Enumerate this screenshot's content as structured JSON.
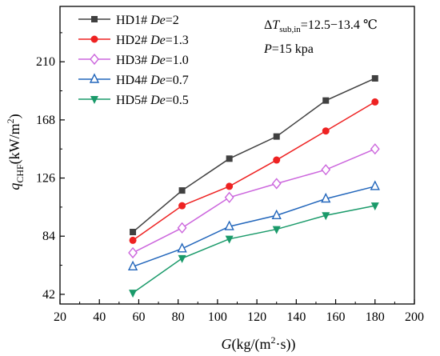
{
  "chart_data": {
    "type": "line",
    "xlabel": "G(kg/(m²·s))",
    "xlabel_parts": {
      "var": "G",
      "rest": "(kg/(m",
      "sup": "2",
      "rest2": "·s))"
    },
    "ylabel": "qCHF(kW/m²)",
    "ylabel_parts": {
      "var": "q",
      "sub": "CHF",
      "rest": "(kW/m",
      "sup": "2",
      "rest2": ")"
    },
    "xlim": [
      20,
      200
    ],
    "ylim": [
      35,
      250
    ],
    "x_ticks": [
      20,
      40,
      60,
      80,
      100,
      120,
      140,
      160,
      180,
      200
    ],
    "y_ticks": [
      42,
      84,
      126,
      168,
      210
    ],
    "grid": false,
    "legend_position": "top-left",
    "annotations": {
      "delta_t": {
        "prefix": "Δ",
        "var": "T",
        "sub": "sub,in",
        "value": "=12.5−13.4 ℃"
      },
      "pressure": {
        "var": "P",
        "value": "=15 kpa"
      }
    },
    "series": [
      {
        "name": "HD1#",
        "param": "De",
        "param_value": "=2",
        "color": "#404040",
        "marker": "square",
        "x": [
          57,
          82,
          106,
          130,
          155,
          180
        ],
        "y": [
          87,
          117,
          140,
          156,
          182,
          198
        ]
      },
      {
        "name": "HD2#",
        "param": "De",
        "param_value": "=1.3",
        "color": "#ee2222",
        "marker": "circle",
        "x": [
          57,
          82,
          106,
          130,
          155,
          180
        ],
        "y": [
          81,
          106,
          120,
          139,
          160,
          181
        ]
      },
      {
        "name": "HD3#",
        "param": "De",
        "param_value": "=1.0",
        "color": "#cc66dd",
        "marker": "diamond-open",
        "x": [
          57,
          82,
          106,
          130,
          155,
          180
        ],
        "y": [
          72,
          90,
          112,
          122,
          132,
          147
        ]
      },
      {
        "name": "HD4#",
        "param": "De",
        "param_value": "=0.7",
        "color": "#2266bb",
        "marker": "triangle-up-open",
        "x": [
          57,
          82,
          106,
          130,
          155,
          180
        ],
        "y": [
          62,
          75,
          91,
          99,
          111,
          120
        ]
      },
      {
        "name": "HD5#",
        "param": "De",
        "param_value": "=0.5",
        "color": "#1a9a6a",
        "marker": "triangle-down",
        "x": [
          57,
          82,
          106,
          130,
          155,
          180
        ],
        "y": [
          43,
          68,
          82,
          89,
          99,
          106
        ]
      }
    ]
  }
}
